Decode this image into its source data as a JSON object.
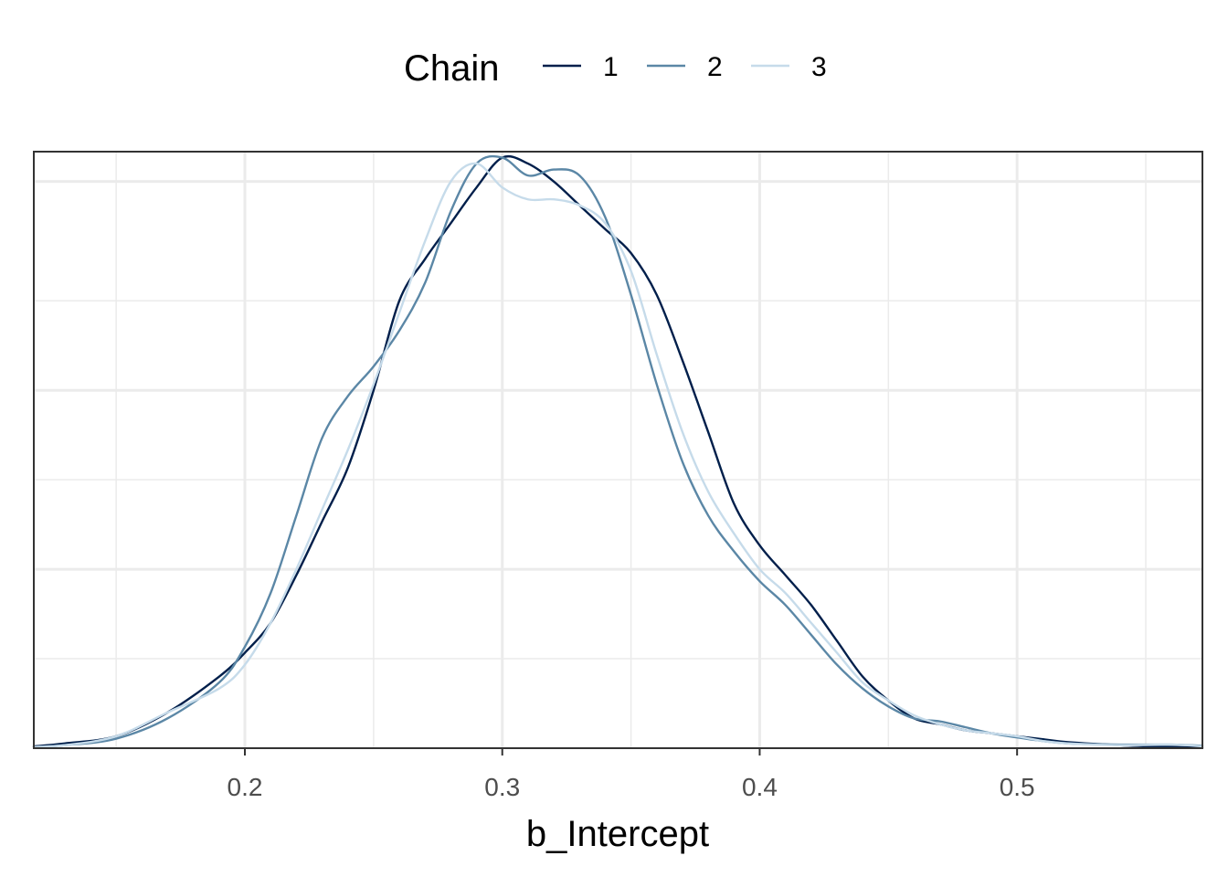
{
  "chart_data": {
    "type": "line",
    "title": "",
    "xlabel": "b_Intercept",
    "ylabel": "",
    "xlim": [
      0.118,
      0.572
    ],
    "ylim": [
      0,
      1.0
    ],
    "grid": true,
    "legend": {
      "title": "Chain",
      "placement": "top",
      "entries": [
        "1",
        "2",
        "3"
      ]
    },
    "x_ticks": [
      0.2,
      0.3,
      0.4,
      0.5
    ],
    "x_tick_labels": [
      "0.2",
      "0.3",
      "0.4",
      "0.5"
    ],
    "y_ticks_major": [
      0.3,
      0.6,
      0.95
    ],
    "y_ticks_minor": [
      0.15,
      0.45,
      0.75
    ],
    "x_ticks_minor": [
      0.15,
      0.25,
      0.35,
      0.45,
      0.55
    ],
    "colors": {
      "chain_1": "#011f4b",
      "chain_2": "#5b87a6",
      "chain_3": "#c6dbea",
      "grid": "#ebebeb",
      "panel_border": "#333333"
    },
    "series": [
      {
        "name": "1",
        "x": [
          0.118,
          0.13,
          0.15,
          0.17,
          0.19,
          0.2,
          0.21,
          0.22,
          0.23,
          0.24,
          0.25,
          0.26,
          0.27,
          0.28,
          0.29,
          0.3,
          0.31,
          0.32,
          0.33,
          0.34,
          0.35,
          0.36,
          0.37,
          0.38,
          0.39,
          0.4,
          0.41,
          0.42,
          0.43,
          0.44,
          0.45,
          0.46,
          0.47,
          0.48,
          0.49,
          0.5,
          0.51,
          0.52,
          0.54,
          0.56,
          0.572
        ],
        "values": [
          0.003,
          0.008,
          0.02,
          0.06,
          0.12,
          0.16,
          0.21,
          0.29,
          0.38,
          0.47,
          0.6,
          0.75,
          0.82,
          0.88,
          0.94,
          0.99,
          0.98,
          0.95,
          0.91,
          0.87,
          0.83,
          0.76,
          0.65,
          0.53,
          0.41,
          0.34,
          0.29,
          0.24,
          0.18,
          0.12,
          0.08,
          0.05,
          0.04,
          0.03,
          0.025,
          0.02,
          0.015,
          0.01,
          0.005,
          0.002,
          0.001
        ]
      },
      {
        "name": "2",
        "x": [
          0.118,
          0.13,
          0.15,
          0.17,
          0.19,
          0.2,
          0.21,
          0.22,
          0.23,
          0.24,
          0.25,
          0.26,
          0.27,
          0.28,
          0.29,
          0.3,
          0.31,
          0.32,
          0.33,
          0.34,
          0.35,
          0.36,
          0.37,
          0.38,
          0.39,
          0.4,
          0.41,
          0.42,
          0.43,
          0.44,
          0.45,
          0.46,
          0.47,
          0.48,
          0.49,
          0.5,
          0.51,
          0.52,
          0.54,
          0.56,
          0.572
        ],
        "values": [
          0.002,
          0.005,
          0.016,
          0.05,
          0.11,
          0.17,
          0.26,
          0.39,
          0.52,
          0.59,
          0.64,
          0.7,
          0.78,
          0.9,
          0.98,
          0.99,
          0.96,
          0.97,
          0.96,
          0.89,
          0.76,
          0.61,
          0.48,
          0.39,
          0.33,
          0.28,
          0.24,
          0.19,
          0.14,
          0.1,
          0.07,
          0.05,
          0.045,
          0.035,
          0.025,
          0.018,
          0.012,
          0.008,
          0.006,
          0.006,
          0.004
        ]
      },
      {
        "name": "3",
        "x": [
          0.118,
          0.13,
          0.15,
          0.17,
          0.19,
          0.2,
          0.21,
          0.22,
          0.23,
          0.24,
          0.25,
          0.26,
          0.27,
          0.28,
          0.29,
          0.3,
          0.31,
          0.32,
          0.33,
          0.34,
          0.35,
          0.36,
          0.37,
          0.38,
          0.39,
          0.4,
          0.41,
          0.42,
          0.43,
          0.44,
          0.45,
          0.46,
          0.47,
          0.48,
          0.49,
          0.5,
          0.51,
          0.52,
          0.54,
          0.56,
          0.572
        ],
        "values": [
          0.002,
          0.005,
          0.02,
          0.06,
          0.1,
          0.14,
          0.21,
          0.3,
          0.4,
          0.5,
          0.61,
          0.73,
          0.85,
          0.95,
          0.98,
          0.94,
          0.92,
          0.92,
          0.91,
          0.88,
          0.8,
          0.66,
          0.53,
          0.43,
          0.36,
          0.3,
          0.26,
          0.21,
          0.16,
          0.11,
          0.08,
          0.055,
          0.04,
          0.03,
          0.025,
          0.02,
          0.012,
          0.008,
          0.005,
          0.006,
          0.003
        ]
      }
    ]
  }
}
